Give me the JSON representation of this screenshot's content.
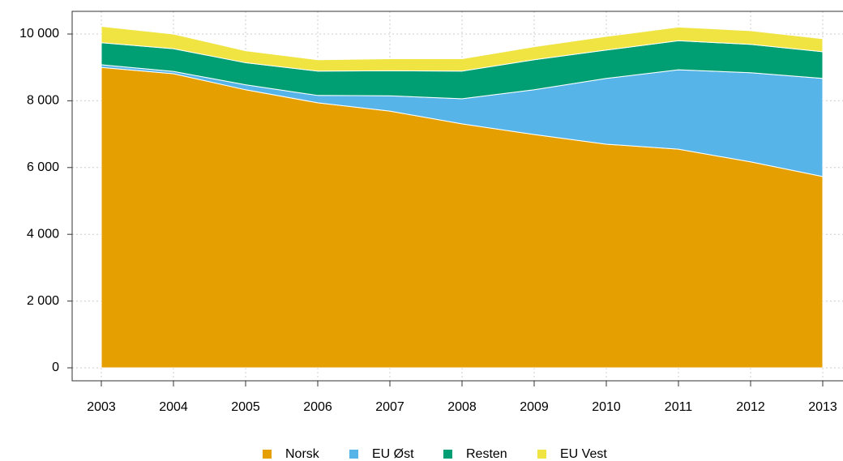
{
  "chart_data": {
    "type": "stacked-area",
    "categories": [
      "2003",
      "2004",
      "2005",
      "2006",
      "2007",
      "2008",
      "2009",
      "2010",
      "2011",
      "2012",
      "2013"
    ],
    "series": [
      {
        "name": "Norsk",
        "color": "#e69f00",
        "values": [
          9000,
          8810,
          8330,
          7940,
          7690,
          7310,
          6990,
          6700,
          6550,
          6170,
          5730
        ]
      },
      {
        "name": "EU Øst",
        "color": "#56b4e9",
        "values": [
          80,
          70,
          150,
          220,
          460,
          750,
          1340,
          1970,
          2380,
          2670,
          2940
        ]
      },
      {
        "name": "Resten",
        "color": "#009e73",
        "values": [
          660,
          680,
          660,
          730,
          750,
          830,
          900,
          850,
          870,
          850,
          800
        ]
      },
      {
        "name": "EU Vest",
        "color": "#f0e442",
        "values": [
          490,
          440,
          360,
          340,
          360,
          370,
          390,
          410,
          410,
          410,
          390
        ]
      }
    ],
    "ylim": [
      0,
      10000
    ],
    "yticks": [
      0,
      {
        "value": 2000,
        "label": "2 000"
      },
      {
        "value": 4000,
        "label": "4 000"
      },
      {
        "value": 6000,
        "label": "6 000"
      },
      {
        "value": 8000,
        "label": "8 000"
      },
      {
        "value": 10000,
        "label": "10 000"
      }
    ],
    "grid": true
  }
}
